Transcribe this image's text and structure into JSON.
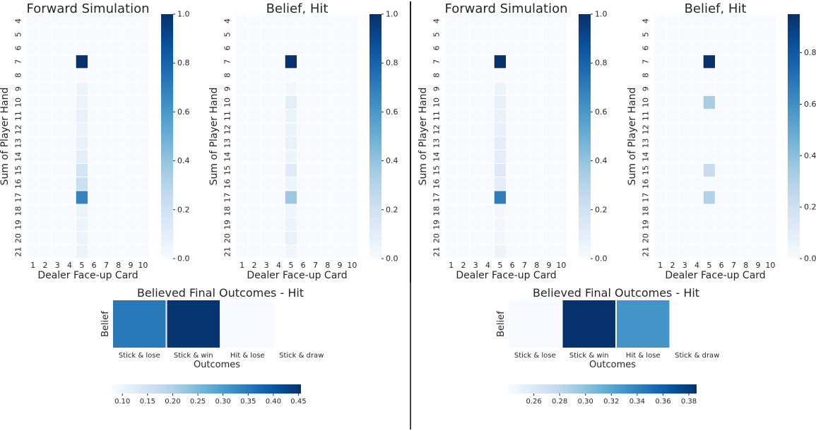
{
  "colors": {
    "scale": [
      "#f7fbff",
      "#deebf7",
      "#c6dbef",
      "#9ecae1",
      "#6baed6",
      "#4292c6",
      "#2171b5",
      "#08519c",
      "#08306b"
    ],
    "divider": "#000000",
    "cell_border": "#ffffff"
  },
  "chart_data": [
    {
      "type": "heatmap",
      "title": "Forward Simulation",
      "xlabel": "Dealer Face-up Card",
      "ylabel": "Sum of Player Hand",
      "x_categories": [
        "1",
        "2",
        "3",
        "4",
        "5",
        "6",
        "7",
        "8",
        "9",
        "10"
      ],
      "y_categories": [
        "4",
        "5",
        "6",
        "7",
        "8",
        "9",
        "10",
        "11",
        "12",
        "13",
        "14",
        "15",
        "16",
        "17",
        "18",
        "19",
        "20",
        "21"
      ],
      "colorbar_ticks": [
        "0.0",
        "0.2",
        "0.4",
        "0.6",
        "0.8",
        "1.0"
      ],
      "vmin": 0,
      "vmax": 1,
      "cells": [
        {
          "x": "5",
          "y": "7",
          "value": 1.0
        },
        {
          "x": "5",
          "y": "9",
          "value": 0.05
        },
        {
          "x": "5",
          "y": "10",
          "value": 0.06
        },
        {
          "x": "5",
          "y": "11",
          "value": 0.07
        },
        {
          "x": "5",
          "y": "12",
          "value": 0.06
        },
        {
          "x": "5",
          "y": "13",
          "value": 0.07
        },
        {
          "x": "5",
          "y": "14",
          "value": 0.09
        },
        {
          "x": "5",
          "y": "15",
          "value": 0.18
        },
        {
          "x": "5",
          "y": "16",
          "value": 0.22
        },
        {
          "x": "5",
          "y": "17",
          "value": 0.68
        },
        {
          "x": "5",
          "y": "18",
          "value": 0.06
        },
        {
          "x": "5",
          "y": "19",
          "value": 0.05
        },
        {
          "x": "5",
          "y": "20",
          "value": 0.05
        },
        {
          "x": "5",
          "y": "21",
          "value": 0.06
        }
      ]
    },
    {
      "type": "heatmap",
      "title": "Belief, Hit",
      "xlabel": "Dealer Face-up Card",
      "ylabel": "Sum of Player Hand",
      "x_categories": [
        "1",
        "2",
        "3",
        "4",
        "5",
        "6",
        "7",
        "8",
        "9",
        "10"
      ],
      "y_categories": [
        "4",
        "5",
        "6",
        "7",
        "8",
        "9",
        "10",
        "11",
        "12",
        "13",
        "14",
        "15",
        "16",
        "17",
        "18",
        "19",
        "20",
        "21"
      ],
      "colorbar_ticks": [
        "0.0",
        "0.2",
        "0.4",
        "0.6",
        "0.8",
        "1.0"
      ],
      "vmin": 0,
      "vmax": 1,
      "cells": [
        {
          "x": "5",
          "y": "7",
          "value": 1.0
        },
        {
          "x": "5",
          "y": "9",
          "value": 0.02
        },
        {
          "x": "5",
          "y": "10",
          "value": 0.1
        },
        {
          "x": "5",
          "y": "11",
          "value": 0.06
        },
        {
          "x": "5",
          "y": "12",
          "value": 0.05
        },
        {
          "x": "5",
          "y": "13",
          "value": 0.07
        },
        {
          "x": "5",
          "y": "14",
          "value": 0.05
        },
        {
          "x": "5",
          "y": "15",
          "value": 0.12
        },
        {
          "x": "5",
          "y": "16",
          "value": 0.05
        },
        {
          "x": "5",
          "y": "17",
          "value": 0.38
        },
        {
          "x": "5",
          "y": "18",
          "value": 0.04
        },
        {
          "x": "5",
          "y": "19",
          "value": 0.05
        },
        {
          "x": "5",
          "y": "20",
          "value": 0.07
        },
        {
          "x": "5",
          "y": "21",
          "value": 0.04
        }
      ]
    },
    {
      "type": "heatmap",
      "title": "Forward Simulation",
      "xlabel": "Dealer Face-up Card",
      "ylabel": "Sum of Player Hand",
      "x_categories": [
        "1",
        "2",
        "3",
        "4",
        "5",
        "6",
        "7",
        "8",
        "9",
        "10"
      ],
      "y_categories": [
        "4",
        "5",
        "6",
        "7",
        "8",
        "9",
        "10",
        "11",
        "12",
        "13",
        "14",
        "15",
        "16",
        "17",
        "18",
        "19",
        "20",
        "21"
      ],
      "colorbar_ticks": [
        "0.0",
        "0.2",
        "0.4",
        "0.6",
        "0.8",
        "1.0"
      ],
      "vmin": 0,
      "vmax": 1,
      "cells": [
        {
          "x": "5",
          "y": "7",
          "value": 1.0
        },
        {
          "x": "5",
          "y": "9",
          "value": 0.06
        },
        {
          "x": "5",
          "y": "10",
          "value": 0.08
        },
        {
          "x": "5",
          "y": "11",
          "value": 0.07
        },
        {
          "x": "5",
          "y": "12",
          "value": 0.08
        },
        {
          "x": "5",
          "y": "13",
          "value": 0.09
        },
        {
          "x": "5",
          "y": "14",
          "value": 0.1
        },
        {
          "x": "5",
          "y": "15",
          "value": 0.13
        },
        {
          "x": "5",
          "y": "16",
          "value": 0.1
        },
        {
          "x": "5",
          "y": "17",
          "value": 0.7
        },
        {
          "x": "5",
          "y": "18",
          "value": 0.03
        },
        {
          "x": "5",
          "y": "19",
          "value": 0.03
        },
        {
          "x": "5",
          "y": "20",
          "value": 0.03
        },
        {
          "x": "5",
          "y": "21",
          "value": 0.05
        }
      ]
    },
    {
      "type": "heatmap",
      "title": "Belief, Hit",
      "xlabel": "Dealer Face-up Card",
      "ylabel": "Sum of Player Hand",
      "x_categories": [
        "1",
        "2",
        "3",
        "4",
        "5",
        "6",
        "7",
        "8",
        "9",
        "10"
      ],
      "y_categories": [
        "4",
        "5",
        "6",
        "7",
        "8",
        "9",
        "10",
        "11",
        "12",
        "13",
        "14",
        "15",
        "16",
        "17",
        "18",
        "19",
        "20",
        "21"
      ],
      "colorbar_ticks": [
        "0.0",
        "0.2",
        "0.4",
        "0.6",
        "0.8"
      ],
      "vmin": 0,
      "vmax": 0.95,
      "cells": [
        {
          "x": "5",
          "y": "7",
          "value": 0.95
        },
        {
          "x": "5",
          "y": "10",
          "value": 0.32
        },
        {
          "x": "5",
          "y": "15",
          "value": 0.22
        },
        {
          "x": "5",
          "y": "17",
          "value": 0.3
        }
      ]
    },
    {
      "type": "heatmap",
      "title": "Believed Final Outcomes - Hit",
      "xlabel": "Outcomes",
      "ylabel": "Belief",
      "categories": [
        "Stick & lose",
        "Stick & win",
        "Hit & lose",
        "Stick & draw"
      ],
      "values": [
        0.35,
        0.45,
        0.08,
        null
      ],
      "colorbar_ticks": [
        "0.10",
        "0.15",
        "0.20",
        "0.25",
        "0.30",
        "0.35",
        "0.40",
        "0.45"
      ],
      "vmin": 0.08,
      "vmax": 0.455
    },
    {
      "type": "heatmap",
      "title": "Believed Final Outcomes - Hit",
      "xlabel": "Outcomes",
      "ylabel": "Belief",
      "categories": [
        "Stick & lose",
        "Stick & win",
        "Hit & lose",
        "Stick & draw"
      ],
      "values": [
        0.24,
        0.385,
        0.33,
        null
      ],
      "colorbar_ticks": [
        "0.26",
        "0.28",
        "0.30",
        "0.32",
        "0.34",
        "0.36",
        "0.38"
      ],
      "vmin": 0.24,
      "vmax": 0.386
    }
  ]
}
